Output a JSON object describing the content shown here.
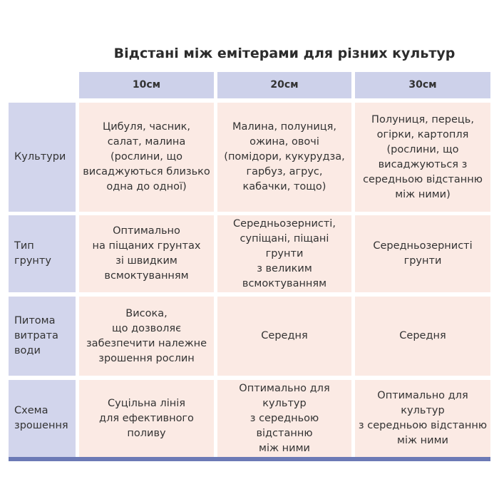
{
  "title": "Відстані між емітерами для різних культур",
  "columns": [
    "10см",
    "20см",
    "30см"
  ],
  "rows": [
    {
      "label": "Культури",
      "cells": [
        "Цибуля, часник,\nсалат, малина\n(рослини, що\nвисаджуються близько\nодна до одної)",
        "Малина, полуниця,\nожина, овочі\n(помідори, кукурудза,\nгарбуз, агрус,\nкабачки, тощо)",
        "Полуниця, перець,\nогірки, картопля\n(рослини, що\nвисаджуються з\nсередньою відстанню\nміж ними)"
      ]
    },
    {
      "label": "Тип грунту",
      "cells": [
        "Оптимально\nна піщаних грунтах\nзі швидким\nвсмоктуванням",
        "Середньозернисті,\nсупіщані, піщані грунти\nз великим\nвсмоктуванням",
        "Середньозернисті\nгрунти"
      ]
    },
    {
      "label": "Питома\nвитрата\nводи",
      "cells": [
        "Висока,\nщо дозволяє\nзабезпечити належне\nзрошення рослин",
        "Середня",
        "Середня"
      ]
    },
    {
      "label": "Схема\nзрошення",
      "cells": [
        "Суцільна лінія\nдля ефективного\nполиву",
        "Оптимально для\nкультур\nз середньою відстанню\nміж ними",
        "Оптимально для\nкультур\nз середньою відстанню\nміж ними"
      ]
    }
  ],
  "colors": {
    "header": "#cdd1ea",
    "label": "#d2d5ec",
    "body": "#fbeae4",
    "bar": "#6c7ab6"
  }
}
